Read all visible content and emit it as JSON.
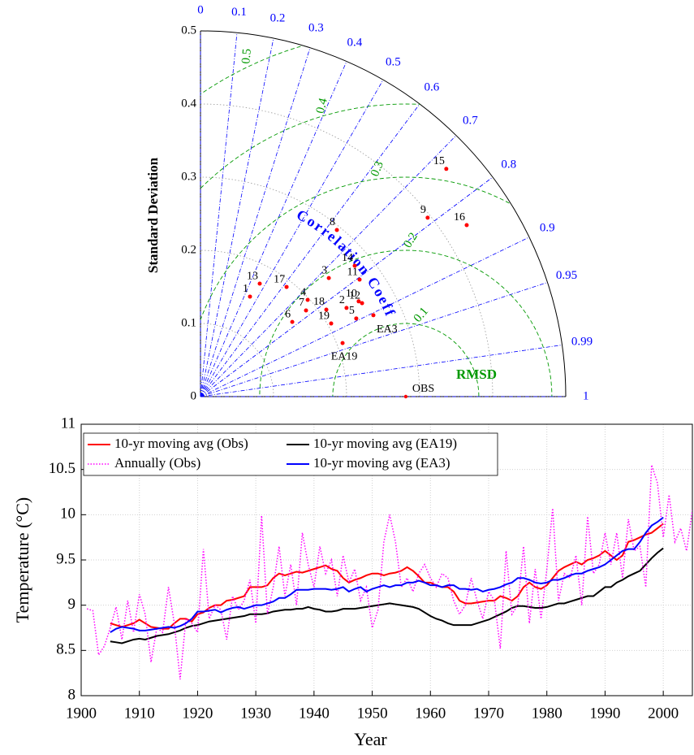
{
  "chart_data": [
    {
      "type": "taylor",
      "ylabel": "Standard Deviation",
      "corr_label": "Correlation Coefficient",
      "rmsd_label": "RMSD",
      "stdlim": [
        0,
        0.5
      ],
      "stdticks": [
        0,
        0.1,
        0.2,
        0.3,
        0.4,
        0.5
      ],
      "corrticks": [
        0,
        0.1,
        0.2,
        0.3,
        0.4,
        0.5,
        0.6,
        0.7,
        0.8,
        0.9,
        0.95,
        0.99,
        1
      ],
      "rmsdticks": [
        0.1,
        0.2,
        0.3,
        0.4,
        0.5
      ],
      "corr_color": "#0000ff",
      "rmsd_color": "#009900",
      "point_color": "#ff0000",
      "ref": {
        "name": "OBS",
        "std": 0.281,
        "corr": 1
      },
      "points": {
        "names": [
          "1",
          "13",
          "17",
          "4",
          "7",
          "6",
          "18",
          "19",
          "3",
          "8",
          "14",
          "11",
          "2",
          "10",
          "12",
          "5",
          "EA3",
          "EA19",
          "9",
          "15",
          "16"
        ],
        "std": [
          0.1526,
          0.1744,
          0.1907,
          0.1975,
          0.1864,
          0.1619,
          0.2093,
          0.2049,
          0.239,
          0.2945,
          0.2767,
          0.2702,
          0.2338,
          0.2527,
          0.2554,
          0.2385,
          0.2615,
          0.2078,
          0.3956,
          0.4584,
          0.4333
        ],
        "corr": [
          0.444,
          0.465,
          0.618,
          0.743,
          0.775,
          0.776,
          0.823,
          0.873,
          0.735,
          0.634,
          0.763,
          0.806,
          0.855,
          0.857,
          0.866,
          0.894,
          0.905,
          0.936,
          0.786,
          0.734,
          0.841
        ]
      }
    },
    {
      "type": "line",
      "xlabel": "Year",
      "ylabel": "Temperature (°C)",
      "xlim": [
        1900,
        2005
      ],
      "xticks": [
        1900,
        1910,
        1920,
        1930,
        1940,
        1950,
        1960,
        1970,
        1980,
        1990,
        2000
      ],
      "ylim": [
        8,
        11
      ],
      "yticks": [
        8,
        8.5,
        9,
        9.5,
        10,
        10.5,
        11
      ],
      "grid": true,
      "legend": "upper left",
      "x": [
        1901,
        1902,
        1903,
        1904,
        1905,
        1906,
        1907,
        1908,
        1909,
        1910,
        1911,
        1912,
        1913,
        1914,
        1915,
        1916,
        1917,
        1918,
        1919,
        1920,
        1921,
        1922,
        1923,
        1924,
        1925,
        1926,
        1927,
        1928,
        1929,
        1930,
        1931,
        1932,
        1933,
        1934,
        1935,
        1936,
        1937,
        1938,
        1939,
        1940,
        1941,
        1942,
        1943,
        1944,
        1945,
        1946,
        1947,
        1948,
        1949,
        1950,
        1951,
        1952,
        1953,
        1954,
        1955,
        1956,
        1957,
        1958,
        1959,
        1960,
        1961,
        1962,
        1963,
        1964,
        1965,
        1966,
        1967,
        1968,
        1969,
        1970,
        1971,
        1972,
        1973,
        1974,
        1975,
        1976,
        1977,
        1978,
        1979,
        1980,
        1981,
        1982,
        1983,
        1984,
        1985,
        1986,
        1987,
        1988,
        1989,
        1990,
        1991,
        1992,
        1993,
        1994,
        1995,
        1996,
        1997,
        1998,
        1999,
        2000,
        2001,
        2002,
        2003,
        2004,
        2005
      ],
      "series": [
        {
          "name": "10-yr moving avg (Obs)",
          "color": "#ff0000",
          "style": "solid",
          "values": [
            null,
            null,
            null,
            null,
            8.8,
            8.78,
            8.76,
            8.78,
            8.8,
            8.84,
            8.8,
            8.76,
            8.75,
            8.74,
            8.74,
            8.8,
            8.85,
            8.85,
            8.82,
            8.9,
            8.92,
            8.97,
            9.0,
            9.0,
            9.05,
            9.06,
            9.08,
            9.1,
            9.2,
            9.2,
            9.2,
            9.22,
            9.3,
            9.35,
            9.33,
            9.35,
            9.37,
            9.36,
            9.38,
            9.4,
            9.42,
            9.44,
            9.4,
            9.38,
            9.3,
            9.25,
            9.28,
            9.3,
            9.33,
            9.35,
            9.35,
            9.33,
            9.35,
            9.36,
            9.38,
            9.42,
            9.38,
            9.32,
            9.25,
            9.25,
            9.22,
            9.2,
            9.2,
            9.15,
            9.05,
            9.02,
            9.02,
            9.03,
            9.04,
            9.05,
            9.05,
            9.1,
            9.08,
            9.05,
            9.1,
            9.2,
            9.25,
            9.2,
            9.18,
            9.22,
            9.3,
            9.38,
            9.42,
            9.45,
            9.48,
            9.45,
            9.5,
            9.52,
            9.55,
            9.6,
            9.55,
            9.5,
            9.55,
            9.7,
            9.72,
            9.75,
            9.78,
            9.8,
            9.85,
            9.9,
            null,
            null,
            null,
            null,
            null
          ]
        },
        {
          "name": "10-yr moving avg (EA19)",
          "color": "#000000",
          "style": "solid",
          "values": [
            null,
            null,
            null,
            null,
            8.6,
            8.59,
            8.58,
            8.6,
            8.62,
            8.63,
            8.62,
            8.64,
            8.66,
            8.67,
            8.68,
            8.7,
            8.72,
            8.75,
            8.77,
            8.78,
            8.8,
            8.82,
            8.83,
            8.84,
            8.85,
            8.86,
            8.87,
            8.88,
            8.9,
            8.9,
            8.9,
            8.91,
            8.93,
            8.94,
            8.95,
            8.95,
            8.96,
            8.96,
            8.98,
            8.96,
            8.95,
            8.93,
            8.93,
            8.94,
            8.96,
            8.96,
            8.96,
            8.97,
            8.98,
            8.99,
            9.0,
            9.01,
            9.02,
            9.01,
            9.0,
            8.99,
            8.98,
            8.96,
            8.92,
            8.88,
            8.85,
            8.83,
            8.8,
            8.78,
            8.78,
            8.78,
            8.78,
            8.8,
            8.82,
            8.84,
            8.87,
            8.9,
            8.93,
            8.97,
            8.99,
            8.99,
            8.98,
            8.97,
            8.97,
            8.98,
            9.0,
            9.02,
            9.02,
            9.04,
            9.06,
            9.08,
            9.1,
            9.1,
            9.15,
            9.2,
            9.2,
            9.25,
            9.28,
            9.32,
            9.35,
            9.38,
            9.45,
            9.52,
            9.58,
            9.63,
            null,
            null,
            null,
            null,
            null
          ]
        },
        {
          "name": "Annually (Obs)",
          "color": "#ff00ff",
          "style": "dotted",
          "values": [
            8.96,
            8.94,
            8.45,
            8.55,
            8.75,
            8.98,
            8.62,
            9.05,
            8.7,
            9.12,
            8.9,
            8.37,
            8.75,
            8.7,
            9.2,
            8.8,
            8.18,
            8.85,
            8.8,
            8.7,
            9.62,
            8.85,
            9.0,
            8.95,
            8.62,
            9.1,
            8.95,
            9.05,
            9.28,
            8.8,
            9.99,
            8.9,
            9.2,
            9.65,
            9.1,
            9.45,
            9.0,
            9.8,
            9.45,
            9.2,
            9.65,
            9.35,
            9.5,
            9.1,
            9.55,
            9.25,
            9.4,
            9.05,
            9.2,
            8.75,
            8.95,
            9.7,
            10.0,
            9.7,
            9.2,
            9.3,
            9.15,
            9.35,
            9.45,
            9.3,
            9.2,
            9.35,
            9.3,
            9.05,
            8.9,
            9.0,
            9.3,
            9.05,
            8.85,
            9.15,
            9.05,
            8.52,
            9.6,
            8.9,
            9.0,
            9.65,
            8.8,
            9.4,
            8.85,
            9.4,
            10.07,
            9.05,
            9.35,
            9.3,
            9.55,
            9.0,
            9.98,
            9.35,
            9.45,
            9.8,
            9.45,
            9.8,
            9.3,
            9.95,
            9.6,
            9.65,
            9.2,
            10.55,
            10.35,
            9.75,
            10.22,
            9.7,
            9.85,
            9.6,
            10.05
          ]
        },
        {
          "name": "10-yr moving avg (EA3)",
          "color": "#0000ff",
          "style": "solid",
          "values": [
            null,
            null,
            null,
            null,
            8.7,
            8.74,
            8.76,
            8.75,
            8.74,
            8.72,
            8.72,
            8.73,
            8.74,
            8.75,
            8.76,
            8.75,
            8.77,
            8.8,
            8.85,
            8.93,
            8.93,
            8.94,
            8.95,
            8.92,
            8.95,
            8.97,
            8.98,
            8.96,
            8.98,
            9.0,
            9.0,
            9.02,
            9.04,
            9.08,
            9.08,
            9.12,
            9.17,
            9.17,
            9.17,
            9.18,
            9.18,
            9.18,
            9.17,
            9.18,
            9.2,
            9.15,
            9.18,
            9.2,
            9.15,
            9.18,
            9.2,
            9.22,
            9.2,
            9.22,
            9.22,
            9.25,
            9.25,
            9.27,
            9.25,
            9.22,
            9.22,
            9.2,
            9.22,
            9.22,
            9.18,
            9.18,
            9.17,
            9.18,
            9.15,
            9.17,
            9.18,
            9.2,
            9.23,
            9.25,
            9.3,
            9.3,
            9.28,
            9.25,
            9.24,
            9.25,
            9.28,
            9.28,
            9.3,
            9.33,
            9.35,
            9.35,
            9.38,
            9.4,
            9.42,
            9.45,
            9.5,
            9.55,
            9.6,
            9.62,
            9.62,
            9.7,
            9.8,
            9.88,
            9.92,
            9.97,
            null,
            null,
            null,
            null,
            null
          ]
        }
      ]
    }
  ]
}
